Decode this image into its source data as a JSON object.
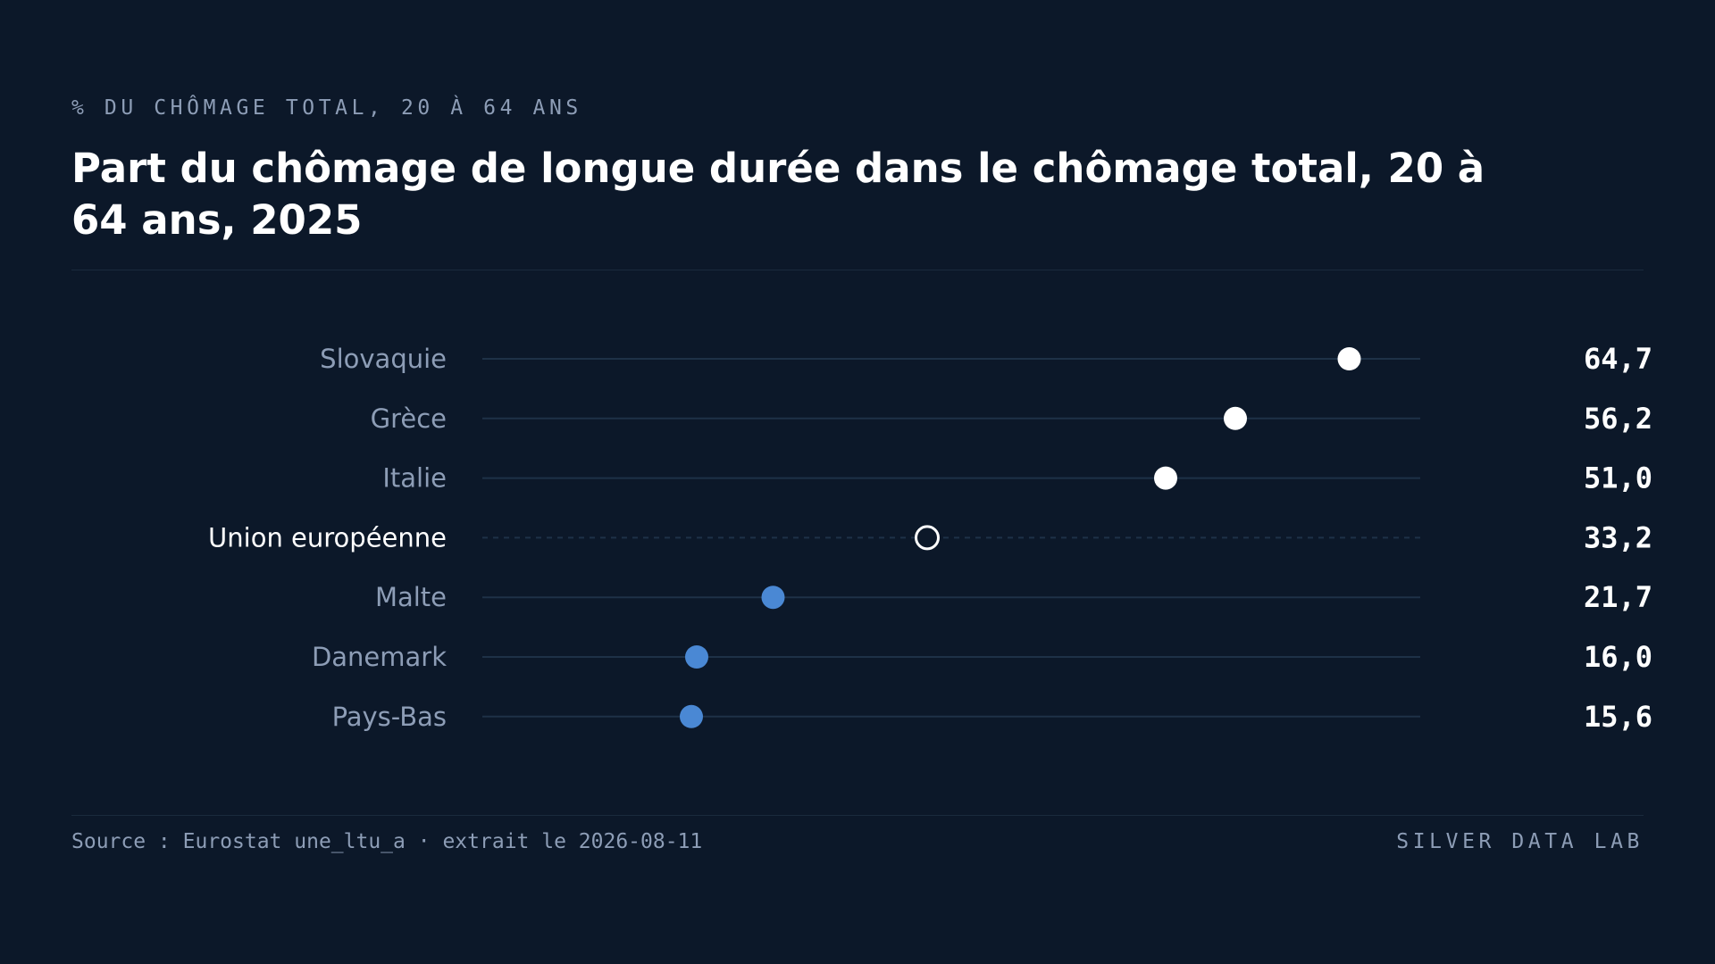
{
  "header": {
    "eyebrow": "% DU CHÔMAGE TOTAL, 20 À 64 ANS",
    "title": "Part du chômage de longue durée dans le chômage total, 20 à 64 ans, 2025"
  },
  "footer": {
    "source": "Source : Eurostat une_ltu_a",
    "separator": "·",
    "extracted": "extrait le 2026-08-11",
    "brand": "SILVER DATA LAB"
  },
  "colors": {
    "background": "#0c1829",
    "highlight": "#ffffff",
    "reference": "#ffffff",
    "low": "#4a88d4",
    "label": "#8d9db6",
    "track": "#1e3147"
  },
  "chart_data": {
    "type": "dot",
    "xlim": [
      0,
      70
    ],
    "grid": false,
    "legend": "none",
    "categories": [
      "Slovaquie",
      "Grèce",
      "Italie",
      "Union européenne",
      "Malte",
      "Danemark",
      "Pays-Bas"
    ],
    "values": [
      64.7,
      56.2,
      51.0,
      33.2,
      21.7,
      16.0,
      15.6
    ],
    "value_labels": [
      "64,7",
      "56,2",
      "51,0",
      "33,2",
      "21,7",
      "16,0",
      "15,6"
    ],
    "groups": [
      "high",
      "high",
      "high",
      "reference",
      "low",
      "low",
      "low"
    ]
  }
}
